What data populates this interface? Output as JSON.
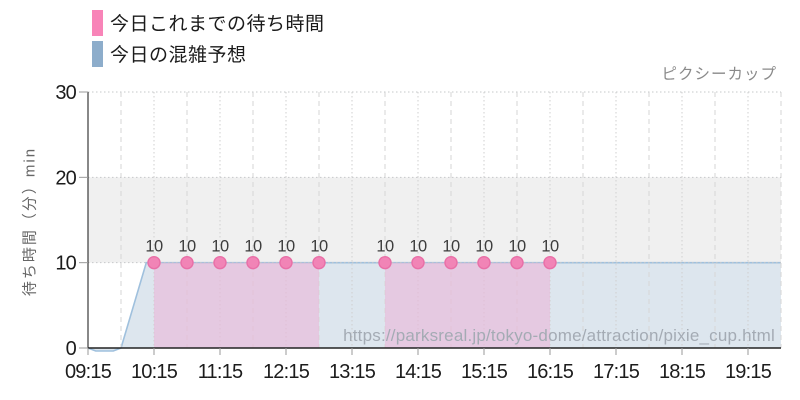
{
  "legend": {
    "items": [
      {
        "label": "今日これまでの待ち時間",
        "color": "#f884b8"
      },
      {
        "label": "今日の混雑予想",
        "color": "#8dadcb"
      }
    ]
  },
  "watermark": "https://parksreal.jp/tokyo-dome/attraction/pixie_cup.html",
  "chart_data": {
    "type": "area",
    "title": "ピクシーカップ",
    "ylabel": "待ち時間（分）min",
    "ylim": [
      0,
      30
    ],
    "yticks": [
      0,
      10,
      20,
      30
    ],
    "xticks": [
      "09:15",
      "10:15",
      "11:15",
      "12:15",
      "13:15",
      "14:15",
      "15:15",
      "16:15",
      "17:15",
      "18:15",
      "19:15"
    ],
    "xlim": [
      "09:15",
      "19:45"
    ],
    "grid": {
      "x_interval_minutes": 30,
      "horizontal_lines_at": [
        10,
        20,
        30
      ],
      "highlight_band": [
        10,
        20
      ]
    },
    "legend_position": "top-left",
    "series": [
      {
        "name": "今日これまでの待ち時間",
        "type": "area-points",
        "point_color": "#f184b6",
        "point_edge_color": "#e96fa7",
        "fill_color": "rgba(234,182,216,0.62)",
        "show_point_labels": true,
        "points": [
          [
            "10:15",
            10
          ],
          [
            "10:45",
            10
          ],
          [
            "11:15",
            10
          ],
          [
            "11:45",
            10
          ],
          [
            "12:15",
            10
          ],
          [
            "12:45",
            10
          ],
          [
            "13:45",
            10
          ],
          [
            "14:15",
            10
          ],
          [
            "14:45",
            10
          ],
          [
            "15:15",
            10
          ],
          [
            "15:45",
            10
          ],
          [
            "16:15",
            10
          ]
        ]
      },
      {
        "name": "今日の混雑予想",
        "type": "area-line",
        "line_color": "#9fc0dd",
        "fill_color": "#dde6ee",
        "points": [
          [
            "09:15",
            0
          ],
          [
            "09:22",
            -0.35
          ],
          [
            "09:38",
            -0.35
          ],
          [
            "09:45",
            0
          ],
          [
            "10:08",
            10
          ],
          [
            "19:45",
            10
          ]
        ]
      }
    ],
    "band_color": "#f0f0f0"
  }
}
